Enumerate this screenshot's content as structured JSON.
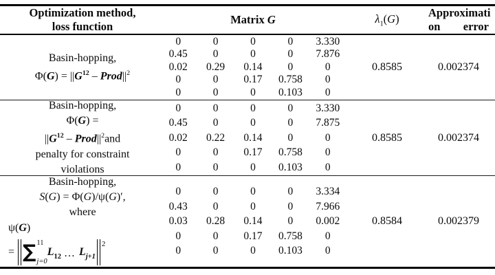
{
  "header": {
    "method_line1": "Optimization method,",
    "method_line2": "loss function",
    "matrix_label": "Matrix ",
    "matrix_var": "G",
    "lambda_sym": "λ",
    "lambda_sub": "1",
    "lambda_open": "(",
    "lambda_var": "G",
    "lambda_close": ")",
    "error_line1": "Approximati",
    "error_line2_left": "on",
    "error_line2_right": "error"
  },
  "rows": [
    {
      "method": {
        "line1": "Basin-hopping,",
        "phi": "Φ(",
        "G1": "G",
        "eq": ") = ||",
        "G2": "G",
        "exp12": "12",
        "dash": " – ",
        "prod": "Prod",
        "bars": "||",
        "exp2": "2"
      },
      "matrix": [
        [
          "0",
          "0",
          "0",
          "0",
          "3.330"
        ],
        [
          "0.45",
          "0",
          "0",
          "0",
          "7.876"
        ],
        [
          "0.02",
          "0.29",
          "0.14",
          "0",
          "0"
        ],
        [
          "0",
          "0",
          "0.17",
          "0.758",
          "0"
        ],
        [
          "0",
          "0",
          "0",
          "0.103",
          "0"
        ]
      ],
      "lambda": "0.8585",
      "error": "0.002374"
    },
    {
      "method": {
        "line1": "Basin-hopping,",
        "l2_phi": "Φ(",
        "l2_G": "G",
        "l2_eq": ") =",
        "l3_bars1": "||",
        "l3_G": "G",
        "l3_exp12": "12",
        "l3_dash": " – ",
        "l3_prod": "Prod",
        "l3_bars2": "||",
        "l3_exp2": "2",
        "l3_and": "and",
        "line4": "penalty for constraint",
        "line5": "violations"
      },
      "matrix": [
        [
          "0",
          "0",
          "0",
          "0",
          "3.330"
        ],
        [
          "0.45",
          "0",
          "0",
          "0",
          "7.875"
        ],
        [
          "0.02",
          "0.22",
          "0.14",
          "0",
          "0"
        ],
        [
          "0",
          "0",
          "0.17",
          "0.758",
          "0"
        ],
        [
          "0",
          "0",
          "0",
          "0.103",
          "0"
        ]
      ],
      "lambda": "0.8585",
      "error": "0.002374"
    },
    {
      "method": {
        "line1": "Basin-hopping,",
        "l2_S": "S",
        "l2_p1": "(",
        "l2_G1": "G",
        "l2_mid": ") = Φ(",
        "l2_G2": "G",
        "l2_div": ")/ψ(",
        "l2_G3": "G",
        "l2_end": ")′,",
        "line3": "where",
        "l4_psi": "ψ(",
        "l4_G": "G",
        "l4_close": ")",
        "f_eq": "=",
        "f_sum": "∑",
        "f_sup": "11",
        "f_sub": "j=0",
        "f_L1": "L",
        "f_L1sub": "12",
        "f_dots": "…",
        "f_L2": "L",
        "f_L2sub": "j+1",
        "f_exp2": "2"
      },
      "matrix": [
        [
          "0",
          "0",
          "0",
          "0",
          "3.334"
        ],
        [
          "0.43",
          "0",
          "0",
          "0",
          "7.966"
        ],
        [
          "0.03",
          "0.28",
          "0.14",
          "0",
          "0.002"
        ],
        [
          "0",
          "0",
          "0.17",
          "0.758",
          "0"
        ],
        [
          "0",
          "0",
          "0",
          "0.103",
          "0"
        ]
      ],
      "lambda": "0.8584",
      "error": "0.002379"
    }
  ]
}
